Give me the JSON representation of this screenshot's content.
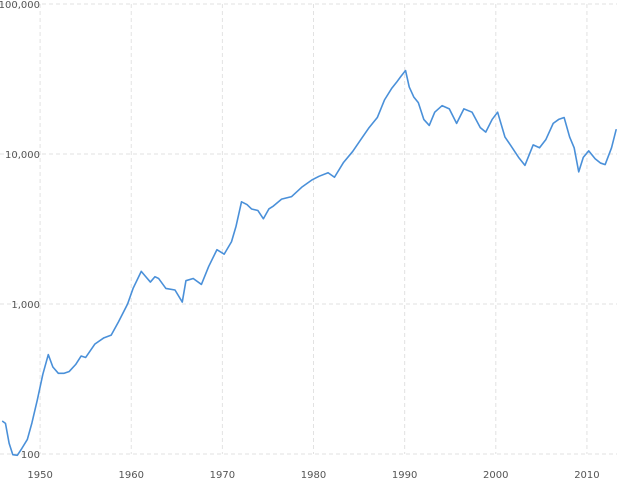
{
  "chart_data": {
    "type": "line",
    "title": "",
    "xlabel": "",
    "ylabel": "",
    "y_scale": "log",
    "xlim": [
      1945.6,
      2013.3
    ],
    "ylim": [
      100,
      100000
    ],
    "grid": true,
    "legend": "none",
    "line_color": "#4a90d9",
    "grid_color": "#e2e2e2",
    "y_ticks": [
      {
        "value": 100,
        "label": "100"
      },
      {
        "value": 1000,
        "label": "1,000"
      },
      {
        "value": 10000,
        "label": "10,000"
      },
      {
        "value": 100000,
        "label": "100,000"
      }
    ],
    "x_ticks": [
      {
        "value": 1950,
        "label": "1950"
      },
      {
        "value": 1960,
        "label": "1960"
      },
      {
        "value": 1970,
        "label": "1970"
      },
      {
        "value": 1980,
        "label": "1980"
      },
      {
        "value": 1990,
        "label": "1990"
      },
      {
        "value": 2000,
        "label": "2000"
      },
      {
        "value": 2010,
        "label": "2010"
      }
    ],
    "series": [
      {
        "x": [
          1945.9,
          1946.2,
          1946.6,
          1947.0,
          1947.5,
          1948.0,
          1948.6,
          1949.1,
          1949.7,
          1950.3,
          1950.9,
          1951.4,
          1952.0,
          1952.6,
          1953.2,
          1953.9,
          1954.5,
          1955.0,
          1956.0,
          1957.0,
          1957.8,
          1958.6,
          1959.6,
          1960.2,
          1961.1,
          1961.6,
          1962.1,
          1962.6,
          1963.0,
          1963.8,
          1964.8,
          1965.6,
          1966.0,
          1966.8,
          1967.7,
          1968.5,
          1969.4,
          1970.2,
          1971.0,
          1971.5,
          1972.1,
          1972.7,
          1973.2,
          1973.9,
          1974.5,
          1975.1,
          1975.6,
          1976.5,
          1977.6,
          1978.7,
          1979.8,
          1980.6,
          1981.6,
          1982.3,
          1983.3,
          1984.3,
          1985.2,
          1986.1,
          1987.0,
          1987.8,
          1988.6,
          1989.1,
          1989.6,
          1990.1,
          1990.5,
          1991.0,
          1991.5,
          1992.1,
          1992.7,
          1993.3,
          1994.1,
          1994.9,
          1995.7,
          1996.5,
          1997.4,
          1998.3,
          1998.9,
          1999.6,
          2000.2,
          2001.0,
          2001.6,
          2002.5,
          2003.2,
          2004.1,
          2004.8,
          2005.5,
          2006.3,
          2006.9,
          2007.5,
          2008.1,
          2008.6,
          2009.1,
          2009.6,
          2010.2,
          2010.9,
          2011.5,
          2012.0,
          2012.7,
          2013.2
        ],
        "y": [
          165,
          160,
          118,
          99,
          98,
          109,
          125,
          161,
          230,
          340,
          460,
          380,
          345,
          345,
          355,
          395,
          450,
          440,
          540,
          595,
          620,
          760,
          1000,
          1270,
          1650,
          1520,
          1400,
          1520,
          1480,
          1270,
          1240,
          1030,
          1430,
          1480,
          1350,
          1780,
          2300,
          2150,
          2600,
          3300,
          4800,
          4600,
          4300,
          4200,
          3700,
          4300,
          4500,
          5000,
          5200,
          6000,
          6700,
          7100,
          7500,
          7000,
          8800,
          10400,
          12500,
          15000,
          17500,
          23000,
          27500,
          30000,
          33000,
          36000,
          28000,
          24000,
          22000,
          17000,
          15500,
          19000,
          21000,
          20000,
          16000,
          20000,
          19000,
          15000,
          14000,
          17000,
          19000,
          13000,
          11500,
          9500,
          8400,
          11500,
          11000,
          12500,
          16000,
          17000,
          17500,
          13000,
          11000,
          7600,
          9500,
          10500,
          9300,
          8700,
          8500,
          11000,
          14500
        ]
      }
    ]
  }
}
